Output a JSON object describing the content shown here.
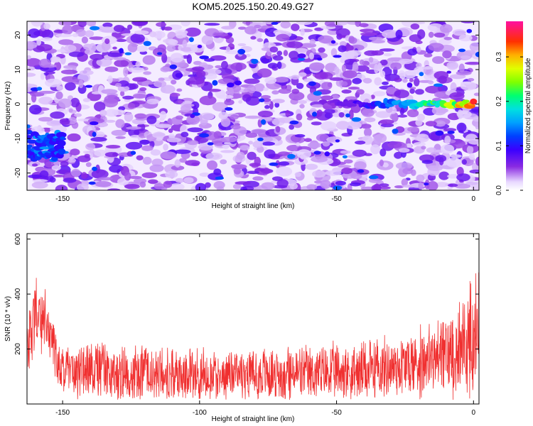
{
  "title": "KOM5.2025.150.20.49.G27",
  "chart_data": [
    {
      "type": "heatmap",
      "xlabel": "Height of straight line (km)",
      "ylabel": "Frequency (Hz)",
      "xlim": [
        -163,
        2
      ],
      "ylim": [
        -25,
        24
      ],
      "x_ticks": [
        -150,
        -100,
        -50,
        0
      ],
      "y_ticks": [
        -20,
        -10,
        0,
        10,
        20
      ],
      "colorbar": {
        "label": "Normalized spectral amplitude",
        "range": [
          0,
          0.38
        ],
        "ticks": [
          0.0,
          0.1,
          0.2,
          0.3
        ]
      },
      "features": [
        {
          "kind": "ridge",
          "x_start": -55,
          "x_end": 0,
          "y": 0,
          "peak_amplitude": 0.35
        },
        {
          "kind": "ridge",
          "x_start": -163,
          "x_end": -150,
          "y": -12,
          "peak_amplitude": 0.15
        }
      ],
      "background_amplitude": [
        0.02,
        0.08
      ]
    },
    {
      "type": "line",
      "xlabel": "Height of straight line (km)",
      "ylabel": "SNR (10 * v/v)",
      "xlim": [
        -163,
        2
      ],
      "ylim": [
        0,
        620
      ],
      "x_ticks": [
        -150,
        -100,
        -50,
        0
      ],
      "y_ticks": [
        200,
        400,
        600
      ],
      "series": [
        {
          "color": "#f03030",
          "envelope": {
            "x": [
              -163,
              -162,
              -160,
              -158,
              -156,
              -154,
              -152,
              -150,
              -145,
              -140,
              -135,
              -130,
              -120,
              -110,
              -100,
              -90,
              -80,
              -70,
              -60,
              -50,
              -40,
              -30,
              -20,
              -15,
              -10,
              -5,
              -2,
              0,
              2
            ],
            "mean": [
              180,
              250,
              330,
              310,
              280,
              230,
              160,
              120,
              110,
              115,
              120,
              110,
              110,
              110,
              105,
              110,
              110,
              110,
              110,
              115,
              120,
              135,
              150,
              165,
              180,
              200,
              220,
              230,
              280
            ],
            "spread": [
              120,
              150,
              170,
              160,
              150,
              140,
              120,
              110,
              110,
              120,
              130,
              120,
              115,
              115,
              110,
              115,
              115,
              115,
              115,
              120,
              125,
              130,
              150,
              160,
              170,
              200,
              250,
              300,
              250
            ]
          }
        }
      ]
    }
  ]
}
